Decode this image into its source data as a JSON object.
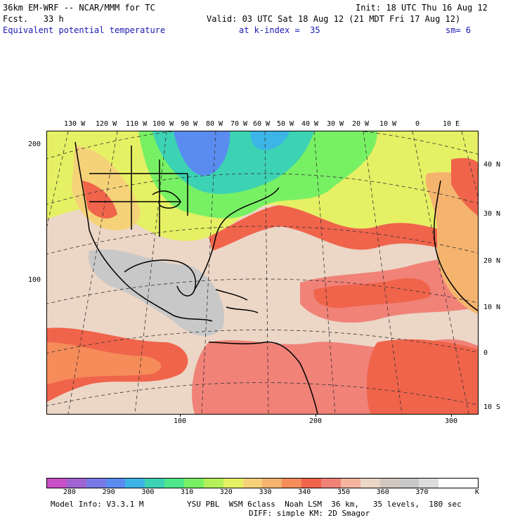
{
  "header": {
    "model_title": "36km EM-WRF -- NCAR/MMM for TC",
    "init": "Init: 18 UTC Thu 16 Aug 12",
    "fcst": "Fcst.   33 h",
    "valid": "Valid: 03 UTC Sat 18 Aug 12 (21 MDT Fri 17 Aug 12)",
    "field": "Equivalent potential temperature",
    "level": "at k-index =  35",
    "smoothing": "sm= 6"
  },
  "map": {
    "top_lon_labels": [
      "130 W",
      "120 W",
      "110 W",
      "100 W",
      "90 W",
      "80 W",
      "70 W",
      "60 W",
      "50 W",
      "40 W",
      "30 W",
      "20 W",
      "10 W",
      "0",
      "10 E"
    ],
    "right_lat_labels": [
      "40 N",
      "30 N",
      "20 N",
      "10 N",
      "0",
      "10 S"
    ],
    "left_grid_labels": [
      "200",
      "100"
    ],
    "bottom_grid_labels": [
      "100",
      "200",
      "300"
    ]
  },
  "colorbar": {
    "colors": [
      "#c850c8",
      "#a064d2",
      "#7878e6",
      "#5a8cf0",
      "#3cb4e6",
      "#3cd2b4",
      "#50e68c",
      "#78f064",
      "#b4f05a",
      "#e6f064",
      "#f5d278",
      "#f5b46e",
      "#f58c5a",
      "#f0644b",
      "#f08278",
      "#f5b4a0",
      "#ecd6c6",
      "#d2c8c0",
      "#c8c8c8",
      "#dcdcdc",
      "#ffffff",
      "#ffffff"
    ],
    "labels": [
      "280",
      "290",
      "300",
      "310",
      "320",
      "330",
      "340",
      "350",
      "360",
      "370"
    ],
    "unit": "K"
  },
  "footer": {
    "model_info": "Model Info: V3.3.1 M",
    "physics_line1": "YSU PBL  WSM 6class  Noah LSM  36 km,   35 levels,  180 sec",
    "physics_line2": "DIFF: simple KM: 2D Smagor"
  }
}
